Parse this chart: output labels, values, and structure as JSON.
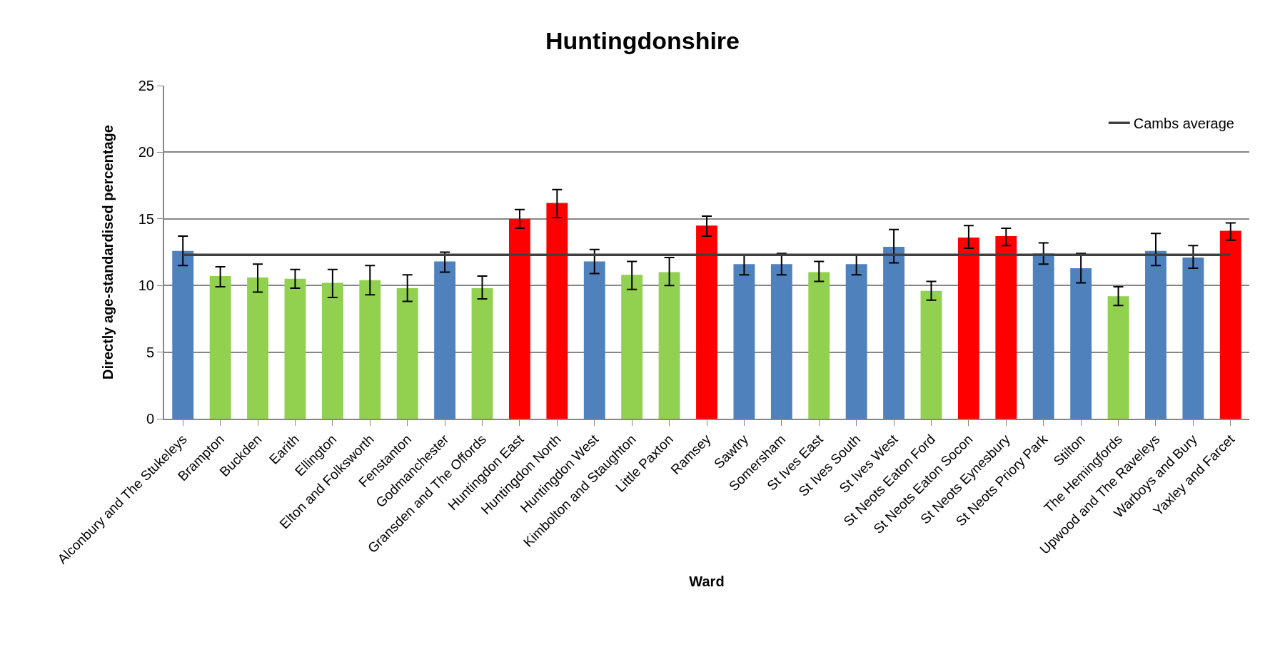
{
  "chart_data": {
    "type": "bar",
    "title": "Huntingdonshire",
    "xlabel": "Ward",
    "ylabel": "Directly age-standardised percentage",
    "categories": [
      "Alconbury and The Stukeleys",
      "Brampton",
      "Buckden",
      "Earith",
      "Ellington",
      "Elton and Folksworth",
      "Fenstanton",
      "Godmanchester",
      "Gransden and The Offords",
      "Huntingdon East",
      "Huntingdon North",
      "Huntingdon West",
      "Kimbolton and Staughton",
      "Little Paxton",
      "Ramsey",
      "Sawtry",
      "Somersham",
      "St Ives East",
      "St Ives South",
      "St Ives West",
      "St Neots Eaton Ford",
      "St Neots Eaton Socon",
      "St Neots Eynesbury",
      "St Neots Priory Park",
      "Stilton",
      "The Hemingfords",
      "Upwood and The Raveleys",
      "Warboys and Bury",
      "Yaxley and Farcet"
    ],
    "values": [
      12.6,
      10.7,
      10.6,
      10.5,
      10.2,
      10.4,
      9.8,
      11.8,
      9.8,
      15.0,
      16.2,
      11.8,
      10.8,
      11.0,
      14.5,
      11.6,
      11.6,
      11.0,
      11.6,
      12.9,
      9.6,
      13.6,
      13.7,
      12.4,
      11.3,
      9.2,
      12.6,
      12.1,
      14.1
    ],
    "errors": [
      [
        11.5,
        13.7
      ],
      [
        9.9,
        11.4
      ],
      [
        9.5,
        11.6
      ],
      [
        9.8,
        11.2
      ],
      [
        9.1,
        11.2
      ],
      [
        9.3,
        11.5
      ],
      [
        8.8,
        10.8
      ],
      [
        11.0,
        12.5
      ],
      [
        9.0,
        10.7
      ],
      [
        14.3,
        15.7
      ],
      [
        15.1,
        17.2
      ],
      [
        10.9,
        12.7
      ],
      [
        9.7,
        11.8
      ],
      [
        10.0,
        12.1
      ],
      [
        13.7,
        15.2
      ],
      [
        10.8,
        12.3
      ],
      [
        10.8,
        12.4
      ],
      [
        10.3,
        11.8
      ],
      [
        10.8,
        12.3
      ],
      [
        11.7,
        14.2
      ],
      [
        8.9,
        10.3
      ],
      [
        12.8,
        14.5
      ],
      [
        13.0,
        14.3
      ],
      [
        11.6,
        13.2
      ],
      [
        10.2,
        12.4
      ],
      [
        8.5,
        9.9
      ],
      [
        11.5,
        13.9
      ],
      [
        11.3,
        13.0
      ],
      [
        13.4,
        14.7
      ]
    ],
    "colors": [
      "#4f81bd",
      "#92d050",
      "#92d050",
      "#92d050",
      "#92d050",
      "#92d050",
      "#92d050",
      "#4f81bd",
      "#92d050",
      "#ff0000",
      "#ff0000",
      "#4f81bd",
      "#92d050",
      "#92d050",
      "#ff0000",
      "#4f81bd",
      "#4f81bd",
      "#92d050",
      "#4f81bd",
      "#4f81bd",
      "#92d050",
      "#ff0000",
      "#ff0000",
      "#4f81bd",
      "#4f81bd",
      "#92d050",
      "#4f81bd",
      "#4f81bd",
      "#ff0000"
    ],
    "ylim": [
      0,
      25
    ],
    "yticks": [
      0,
      5,
      10,
      15,
      20,
      25
    ],
    "grid": "y",
    "ref_lines": [
      {
        "axis": "y",
        "value": 12.3,
        "label": "Cambs average",
        "color": "#404040"
      }
    ],
    "legend": "top right"
  }
}
